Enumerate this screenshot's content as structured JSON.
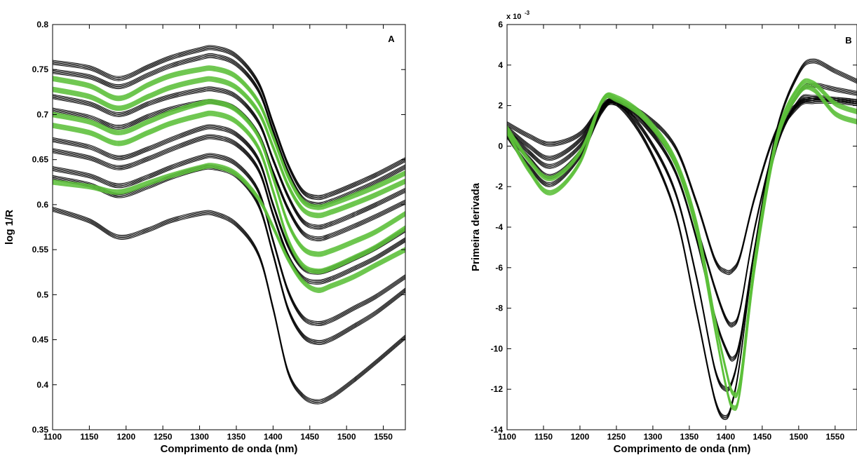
{
  "chart_data": [
    {
      "type": "line",
      "panel_label": "A",
      "xlabel": "Comprimento de onda (nm)",
      "ylabel": "log 1/R",
      "xlim": [
        1100,
        1580
      ],
      "ylim": [
        0.35,
        0.8
      ],
      "xticks": [
        1100,
        1150,
        1200,
        1250,
        1300,
        1350,
        1400,
        1450,
        1500,
        1550
      ],
      "yticks": [
        0.35,
        0.4,
        0.45,
        0.5,
        0.55,
        0.6,
        0.65,
        0.7,
        0.75,
        0.8
      ],
      "ytick_labels": [
        "0.35",
        "0.4",
        "0.45",
        "0.5",
        "0.55",
        "0.6",
        "0.65",
        "0.7",
        "0.75",
        "0.8"
      ],
      "grid": false,
      "colors": {
        "group1": "#000000",
        "group2": "#5cbf3a"
      },
      "x": [
        1100,
        1150,
        1190,
        1230,
        1260,
        1300,
        1320,
        1350,
        1380,
        1400,
        1420,
        1440,
        1460,
        1480,
        1510,
        1540,
        1580
      ],
      "series": [
        {
          "color": "#000000",
          "values": [
            0.758,
            0.752,
            0.74,
            0.753,
            0.763,
            0.772,
            0.774,
            0.765,
            0.735,
            0.69,
            0.645,
            0.615,
            0.608,
            0.612,
            0.622,
            0.633,
            0.65
          ]
        },
        {
          "color": "#000000",
          "values": [
            0.748,
            0.742,
            0.731,
            0.744,
            0.754,
            0.763,
            0.765,
            0.756,
            0.727,
            0.682,
            0.637,
            0.607,
            0.6,
            0.604,
            0.614,
            0.625,
            0.642
          ]
        },
        {
          "color": "#000000",
          "values": [
            0.72,
            0.712,
            0.7,
            0.712,
            0.72,
            0.727,
            0.728,
            0.72,
            0.692,
            0.65,
            0.61,
            0.582,
            0.575,
            0.579,
            0.589,
            0.6,
            0.616
          ]
        },
        {
          "color": "#000000",
          "values": [
            0.705,
            0.697,
            0.686,
            0.698,
            0.706,
            0.713,
            0.714,
            0.706,
            0.678,
            0.636,
            0.596,
            0.569,
            0.562,
            0.566,
            0.576,
            0.587,
            0.603
          ]
        },
        {
          "color": "#000000",
          "values": [
            0.672,
            0.664,
            0.652,
            0.662,
            0.672,
            0.684,
            0.686,
            0.678,
            0.65,
            0.6,
            0.555,
            0.53,
            0.525,
            0.529,
            0.54,
            0.552,
            0.572
          ]
        },
        {
          "color": "#000000",
          "values": [
            0.66,
            0.652,
            0.641,
            0.651,
            0.661,
            0.673,
            0.675,
            0.667,
            0.639,
            0.589,
            0.544,
            0.519,
            0.514,
            0.518,
            0.529,
            0.541,
            0.561
          ]
        },
        {
          "color": "#000000",
          "values": [
            0.64,
            0.632,
            0.621,
            0.631,
            0.641,
            0.652,
            0.654,
            0.645,
            0.615,
            0.56,
            0.505,
            0.475,
            0.468,
            0.472,
            0.485,
            0.498,
            0.52
          ]
        },
        {
          "color": "#000000",
          "values": [
            0.63,
            0.622,
            0.61,
            0.62,
            0.63,
            0.64,
            0.641,
            0.632,
            0.6,
            0.545,
            0.485,
            0.455,
            0.447,
            0.451,
            0.465,
            0.48,
            0.505
          ]
        },
        {
          "color": "#000000",
          "values": [
            0.595,
            0.582,
            0.564,
            0.572,
            0.582,
            0.59,
            0.59,
            0.578,
            0.545,
            0.485,
            0.415,
            0.388,
            0.381,
            0.387,
            0.405,
            0.425,
            0.453
          ]
        },
        {
          "color": "#5cbf3a",
          "values": [
            0.74,
            0.732,
            0.718,
            0.733,
            0.743,
            0.75,
            0.751,
            0.742,
            0.714,
            0.675,
            0.632,
            0.604,
            0.597,
            0.601,
            0.61,
            0.62,
            0.635
          ]
        },
        {
          "color": "#5cbf3a",
          "values": [
            0.728,
            0.72,
            0.707,
            0.72,
            0.73,
            0.738,
            0.739,
            0.73,
            0.703,
            0.664,
            0.622,
            0.595,
            0.588,
            0.592,
            0.601,
            0.611,
            0.626
          ]
        },
        {
          "color": "#5cbf3a",
          "values": [
            0.7,
            0.692,
            0.68,
            0.692,
            0.702,
            0.712,
            0.714,
            0.705,
            0.676,
            0.63,
            0.58,
            0.552,
            0.545,
            0.549,
            0.559,
            0.57,
            0.59
          ]
        },
        {
          "color": "#5cbf3a",
          "values": [
            0.688,
            0.68,
            0.668,
            0.68,
            0.69,
            0.699,
            0.701,
            0.692,
            0.663,
            0.615,
            0.562,
            0.533,
            0.526,
            0.53,
            0.541,
            0.553,
            0.574
          ]
        },
        {
          "color": "#5cbf3a",
          "values": [
            0.625,
            0.62,
            0.614,
            0.624,
            0.632,
            0.641,
            0.643,
            0.634,
            0.607,
            0.575,
            0.54,
            0.515,
            0.505,
            0.51,
            0.52,
            0.533,
            0.55
          ]
        }
      ]
    },
    {
      "type": "line",
      "panel_label": "B",
      "xlabel": "Comprimento de onda (nm)",
      "ylabel": "Primeira derivada",
      "y_multiplier_label": "x 10",
      "y_multiplier_exponent": "-3",
      "xlim": [
        1100,
        1580
      ],
      "ylim": [
        -14,
        6
      ],
      "xticks": [
        1100,
        1150,
        1200,
        1250,
        1300,
        1350,
        1400,
        1450,
        1500,
        1550
      ],
      "yticks": [
        -14,
        -12,
        -10,
        -8,
        -6,
        -4,
        -2,
        0,
        2,
        4,
        6
      ],
      "ytick_labels": [
        "-14",
        "-12",
        "-10",
        "-8",
        "-6",
        "-4",
        "-2",
        "0",
        "2",
        "4",
        "6"
      ],
      "grid": false,
      "colors": {
        "group1": "#000000",
        "group2": "#5cbf3a"
      },
      "x": [
        1100,
        1130,
        1160,
        1200,
        1230,
        1250,
        1290,
        1330,
        1360,
        1385,
        1400,
        1410,
        1420,
        1440,
        1470,
        1500,
        1520,
        1550,
        1580
      ],
      "series": [
        {
          "color": "#000000",
          "values": [
            1.1,
            0.5,
            0.1,
            0.6,
            2.0,
            2.2,
            1.5,
            0.0,
            -2.8,
            -5.6,
            -6.2,
            -6.1,
            -5.4,
            -2.5,
            0.8,
            2.1,
            2.3,
            2.3,
            2.2
          ]
        },
        {
          "color": "#000000",
          "values": [
            0.9,
            0.0,
            -0.6,
            0.3,
            1.9,
            2.2,
            1.2,
            -0.8,
            -4.0,
            -7.0,
            -8.5,
            -8.8,
            -8.0,
            -4.0,
            0.3,
            2.0,
            2.2,
            2.2,
            2.1
          ]
        },
        {
          "color": "#000000",
          "values": [
            0.8,
            -0.3,
            -1.0,
            0.0,
            1.8,
            2.1,
            1.0,
            -1.2,
            -4.6,
            -8.4,
            -10.0,
            -10.5,
            -9.5,
            -5.0,
            0.0,
            2.2,
            2.4,
            2.3,
            2.2
          ]
        },
        {
          "color": "#000000",
          "values": [
            0.6,
            -0.6,
            -1.5,
            -0.3,
            1.8,
            2.2,
            0.6,
            -2.2,
            -6.5,
            -11.0,
            -12.0,
            -11.5,
            -9.8,
            -5.0,
            0.3,
            2.6,
            3.0,
            2.8,
            2.6
          ]
        },
        {
          "color": "#000000",
          "values": [
            0.5,
            -1.0,
            -1.9,
            -0.5,
            1.7,
            2.1,
            0.2,
            -3.2,
            -8.2,
            -12.5,
            -13.4,
            -12.5,
            -10.5,
            -5.0,
            0.8,
            3.6,
            4.2,
            3.7,
            3.2
          ]
        },
        {
          "color": "#5cbf3a",
          "values": [
            0.9,
            -0.7,
            -1.6,
            -0.3,
            2.2,
            2.4,
            1.4,
            -0.6,
            -3.8,
            -8.5,
            -11.0,
            -12.2,
            -11.5,
            -5.5,
            0.5,
            2.9,
            3.1,
            2.1,
            1.7
          ]
        },
        {
          "color": "#5cbf3a",
          "values": [
            0.7,
            -1.2,
            -2.3,
            -0.8,
            2.2,
            2.3,
            1.3,
            -0.8,
            -4.2,
            -9.0,
            -11.8,
            -12.9,
            -12.0,
            -6.0,
            0.2,
            2.6,
            2.8,
            1.6,
            1.2
          ]
        }
      ]
    }
  ]
}
